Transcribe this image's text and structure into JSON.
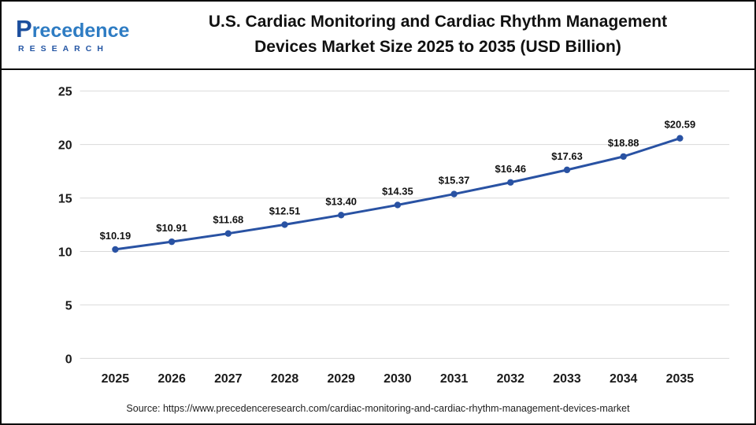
{
  "header": {
    "logo": {
      "name": "Precedence",
      "subtitle": "RESEARCH"
    },
    "title_line1": "U.S. Cardiac Monitoring and Cardiac Rhythm Management",
    "title_line2": "Devices Market Size 2025 to 2035 (USD Billion)"
  },
  "chart_data": {
    "type": "line",
    "title": "U.S. Cardiac Monitoring and Cardiac Rhythm Management Devices Market Size 2025 to 2035 (USD Billion)",
    "categories": [
      "2025",
      "2026",
      "2027",
      "2028",
      "2029",
      "2030",
      "2031",
      "2032",
      "2033",
      "2034",
      "2035"
    ],
    "values": [
      10.19,
      10.91,
      11.68,
      12.51,
      13.4,
      14.35,
      15.37,
      16.46,
      17.63,
      18.88,
      20.59
    ],
    "labels": [
      "$10.19",
      "$10.91",
      "$11.68",
      "$12.51",
      "$13.40",
      "$14.35",
      "$15.37",
      "$16.46",
      "$17.63",
      "$18.88",
      "$20.59"
    ],
    "xlabel": "",
    "ylabel": "",
    "ylim": [
      0,
      25
    ],
    "yticks": [
      0,
      5,
      10,
      15,
      20,
      25
    ],
    "grid": true,
    "legend_position": "none",
    "line_color": "#2952a3",
    "marker_color": "#2952a3",
    "grid_color": "#d9d9d9",
    "axis_label_color": "#1a1a1a",
    "data_label_color": "#111111"
  },
  "footer": {
    "source": "Source: https://www.precedenceresearch.com/cardiac-monitoring-and-cardiac-rhythm-management-devices-market"
  }
}
